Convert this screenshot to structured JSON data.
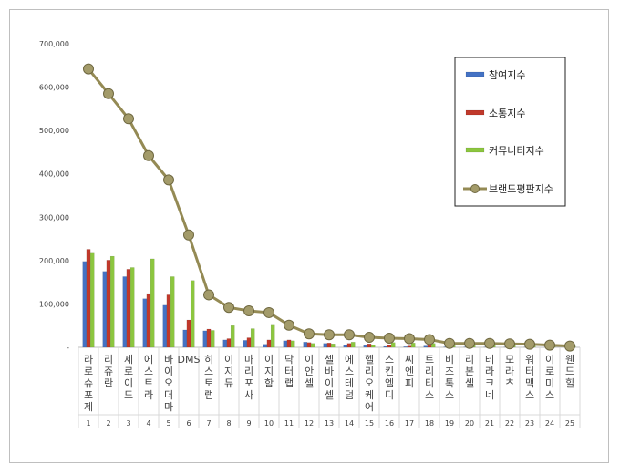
{
  "chart_data": {
    "type": "bar",
    "title": "",
    "xlabel": "",
    "ylabel": "",
    "ylim": [
      0,
      700000
    ],
    "yticks": [
      "-",
      "100,000",
      "200,000",
      "300,000",
      "400,000",
      "500,000",
      "600,000",
      "700,000"
    ],
    "grid": false,
    "legend_position": "top-right",
    "categories": [
      "라로슈포제",
      "리쥬란",
      "제로이드",
      "에스트라",
      "바이오더마",
      "DMS",
      "히스토랩",
      "이지듀",
      "마리포사",
      "이지함",
      "닥터랩",
      "이안셀",
      "셀바이셀",
      "에스테덤",
      "헬리오케어",
      "스킨엠디",
      "씨엔피",
      "트리티스",
      "비즈톡스",
      "리본셀",
      "테라크네",
      "모라츠",
      "워터맥스",
      "이로미스",
      "웬드힐"
    ],
    "ranks": [
      "1",
      "2",
      "3",
      "4",
      "5",
      "6",
      "7",
      "8",
      "9",
      "10",
      "11",
      "12",
      "13",
      "14",
      "15",
      "16",
      "17",
      "18",
      "19",
      "20",
      "21",
      "22",
      "23",
      "24",
      "25"
    ],
    "series": [
      {
        "name": "참여지수",
        "color": "#4472c4",
        "type": "bar",
        "values": [
          198000,
          175000,
          163000,
          112000,
          97000,
          40000,
          38000,
          17000,
          16000,
          7000,
          15000,
          12000,
          9000,
          6000,
          4000,
          2000,
          1500,
          3000,
          1000,
          800,
          600,
          500,
          400,
          300,
          200
        ]
      },
      {
        "name": "소통지수",
        "color": "#c0392b",
        "type": "bar",
        "values": [
          226000,
          201000,
          180000,
          124000,
          121000,
          63000,
          42000,
          20000,
          22000,
          17000,
          17000,
          11000,
          10000,
          9000,
          8000,
          5000,
          3000,
          4000,
          2000,
          1500,
          1200,
          1000,
          800,
          700,
          600
        ]
      },
      {
        "name": "커뮤니티지수",
        "color": "#8cc63f",
        "type": "bar",
        "values": [
          217000,
          210000,
          184000,
          204000,
          163000,
          154000,
          39000,
          50000,
          43000,
          53000,
          15000,
          9000,
          8000,
          12000,
          6000,
          11000,
          10000,
          9000,
          4000,
          6000,
          5000,
          5000,
          4000,
          3000,
          3000
        ]
      },
      {
        "name": "브랜드평판지수",
        "color": "#948a54",
        "type": "line",
        "values": [
          642000,
          585000,
          527000,
          442000,
          386000,
          259000,
          121000,
          92000,
          84000,
          80000,
          51000,
          31000,
          29000,
          29000,
          23000,
          21000,
          20000,
          18000,
          9000,
          9000,
          9000,
          8000,
          7000,
          5000,
          3000
        ]
      }
    ]
  }
}
